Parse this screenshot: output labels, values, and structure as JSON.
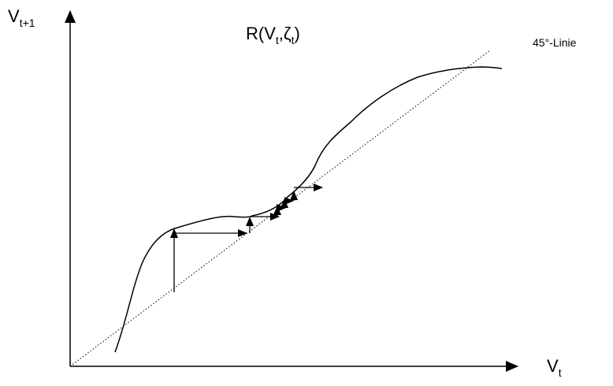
{
  "labels": {
    "y_axis": {
      "main": "V",
      "sub": "t+1"
    },
    "x_axis": {
      "main": "V",
      "sub": "t"
    },
    "function": {
      "prefix": "R(V",
      "sub1": "t",
      "mid": ",ζ",
      "sub2": "t",
      "suffix": ")"
    },
    "diagonal": "45°-Linie"
  },
  "colors": {
    "ink": "#000000",
    "background": "#ffffff"
  },
  "icons": {
    "axis_arrowheads": "filled-triangle",
    "step_arrows": "filled-triangle"
  }
}
